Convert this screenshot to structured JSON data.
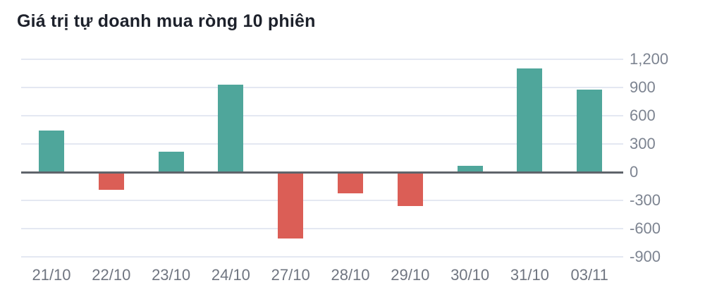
{
  "title": "Giá trị tự doanh mua ròng 10 phiên",
  "chart_data": {
    "type": "bar",
    "title": "Giá trị tự doanh mua ròng 10 phiên",
    "categories": [
      "21/10",
      "22/10",
      "23/10",
      "24/10",
      "27/10",
      "28/10",
      "29/10",
      "30/10",
      "31/10",
      "03/11"
    ],
    "values": [
      445,
      -180,
      220,
      930,
      -700,
      -220,
      -350,
      70,
      1100,
      875
    ],
    "series": [
      {
        "name": "Giá trị tự doanh mua ròng",
        "values": [
          445,
          -180,
          220,
          930,
          -700,
          -220,
          -350,
          70,
          1100,
          875
        ]
      }
    ],
    "xlabel": "",
    "ylabel": "",
    "ylim": [
      -900,
      1200
    ],
    "ytick_step": 300,
    "yticks": [
      {
        "label": "1,200",
        "value": 1200
      },
      {
        "label": "900",
        "value": 900
      },
      {
        "label": "600",
        "value": 600
      },
      {
        "label": "300",
        "value": 300
      },
      {
        "label": "0",
        "value": 0
      },
      {
        "label": "-300",
        "value": -300
      },
      {
        "label": "-600",
        "value": -600
      },
      {
        "label": "-900",
        "value": -900
      }
    ],
    "grid": true,
    "legend_position": "none",
    "y_axis_position": "right",
    "colors": {
      "positive_bar": "#4fa69b",
      "negative_bar": "#db5e56",
      "gridline": "#e4e8f2",
      "zero_line": "#5f646b",
      "y_tick_label": "#7d8491",
      "x_tick_label": "#6f7580",
      "title": "#1d212b",
      "background": "#ffffff"
    }
  }
}
